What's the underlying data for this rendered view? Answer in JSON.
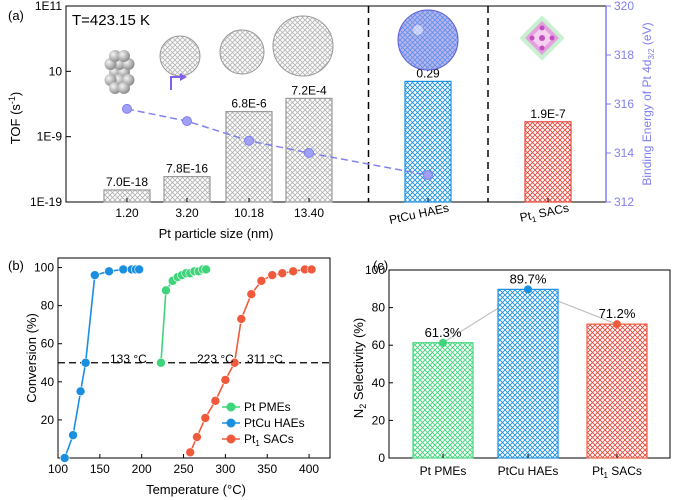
{
  "chart_data": [
    {
      "panel": "(a)",
      "type": "bar",
      "annotation": "T=423.15 K",
      "xlabel": "Pt particle size (nm)",
      "ylabel": "TOF (s-1)",
      "ylabel_right": "Binding Energy of Pt 4d3/2 (eV)",
      "yscale": "log",
      "ylim": [
        1e-19,
        100000000000.0
      ],
      "yticks": [
        "1E-19",
        "1E-9",
        "10",
        "1E11"
      ],
      "y2lim": [
        312,
        320
      ],
      "y2ticks": [
        "312",
        "314",
        "316",
        "318",
        "320"
      ],
      "categories": [
        "1.20",
        "3.20",
        "10.18",
        "13.40",
        "PtCu HAEs",
        "Pt1 SACs"
      ],
      "values": [
        7e-18,
        7.8e-16,
        6.8e-06,
        0.00072,
        0.29,
        1.9e-07
      ],
      "value_labels": [
        "7.0E-18",
        "7.8E-16",
        "6.8E-6",
        "7.2E-4",
        "0.29",
        "1.9E-7"
      ],
      "bar_colors": [
        "#9a9a9a",
        "#9a9a9a",
        "#9a9a9a",
        "#9a9a9a",
        "#1a8fe0",
        "#e8463a"
      ],
      "binding_energy": {
        "x": [
          "1.20",
          "3.20",
          "10.18",
          "13.40",
          "PtCu HAEs"
        ],
        "y": [
          315.8,
          315.3,
          314.5,
          314.0,
          313.1
        ],
        "color": "#8080ee"
      },
      "separators_after": [
        "13.40",
        "PtCu HAEs"
      ],
      "right_axis_color": "#8080ee"
    },
    {
      "panel": "(b)",
      "type": "line",
      "xlabel": "Temperature (°C)",
      "ylabel": "Conversion (%)",
      "xlim": [
        100,
        425
      ],
      "xticks": [
        "100",
        "150",
        "200",
        "250",
        "300",
        "350",
        "400"
      ],
      "ylim": [
        0,
        105
      ],
      "yticks": [
        "20",
        "40",
        "60",
        "80",
        "100"
      ],
      "reference_line_y": 50,
      "annotations": [
        "133 °C",
        "223 °C",
        "311 °C"
      ],
      "series": [
        {
          "name": "Pt PMEs",
          "color": "#3ed47a",
          "x": [
            223,
            229,
            237,
            243,
            248,
            253,
            258,
            263,
            268,
            273,
            277
          ],
          "y": [
            50,
            88,
            93,
            95,
            96,
            97,
            97,
            98,
            98,
            99,
            99
          ]
        },
        {
          "name": "PtCu HAEs",
          "color": "#1a8fe0",
          "x": [
            108,
            118,
            127,
            133,
            144,
            161,
            178,
            188,
            193,
            197
          ],
          "y": [
            0,
            12,
            35,
            50,
            96,
            98,
            99,
            99,
            99,
            99
          ]
        },
        {
          "name": "Pt1 SACs",
          "color": "#f05a3c",
          "x": [
            258,
            266,
            276,
            288,
            300,
            311,
            319,
            331,
            343,
            356,
            368,
            381,
            395,
            403
          ],
          "y": [
            3,
            11,
            21,
            30,
            41,
            50,
            73,
            86,
            93,
            96,
            97,
            98,
            99,
            99
          ]
        }
      ]
    },
    {
      "panel": "(c)",
      "type": "bar",
      "ylabel": "N2 Selectivity (%)",
      "ylim": [
        0,
        100
      ],
      "yticks": [
        "0",
        "20",
        "40",
        "60",
        "80",
        "100"
      ],
      "categories": [
        "Pt PMEs",
        "PtCu HAEs",
        "Pt1 SACs"
      ],
      "values": [
        61.3,
        89.7,
        71.2
      ],
      "value_labels": [
        "61.3%",
        "89.7%",
        "71.2%"
      ],
      "bar_colors": [
        "#3ed47a",
        "#1a8fe0",
        "#f05a3c"
      ]
    }
  ]
}
